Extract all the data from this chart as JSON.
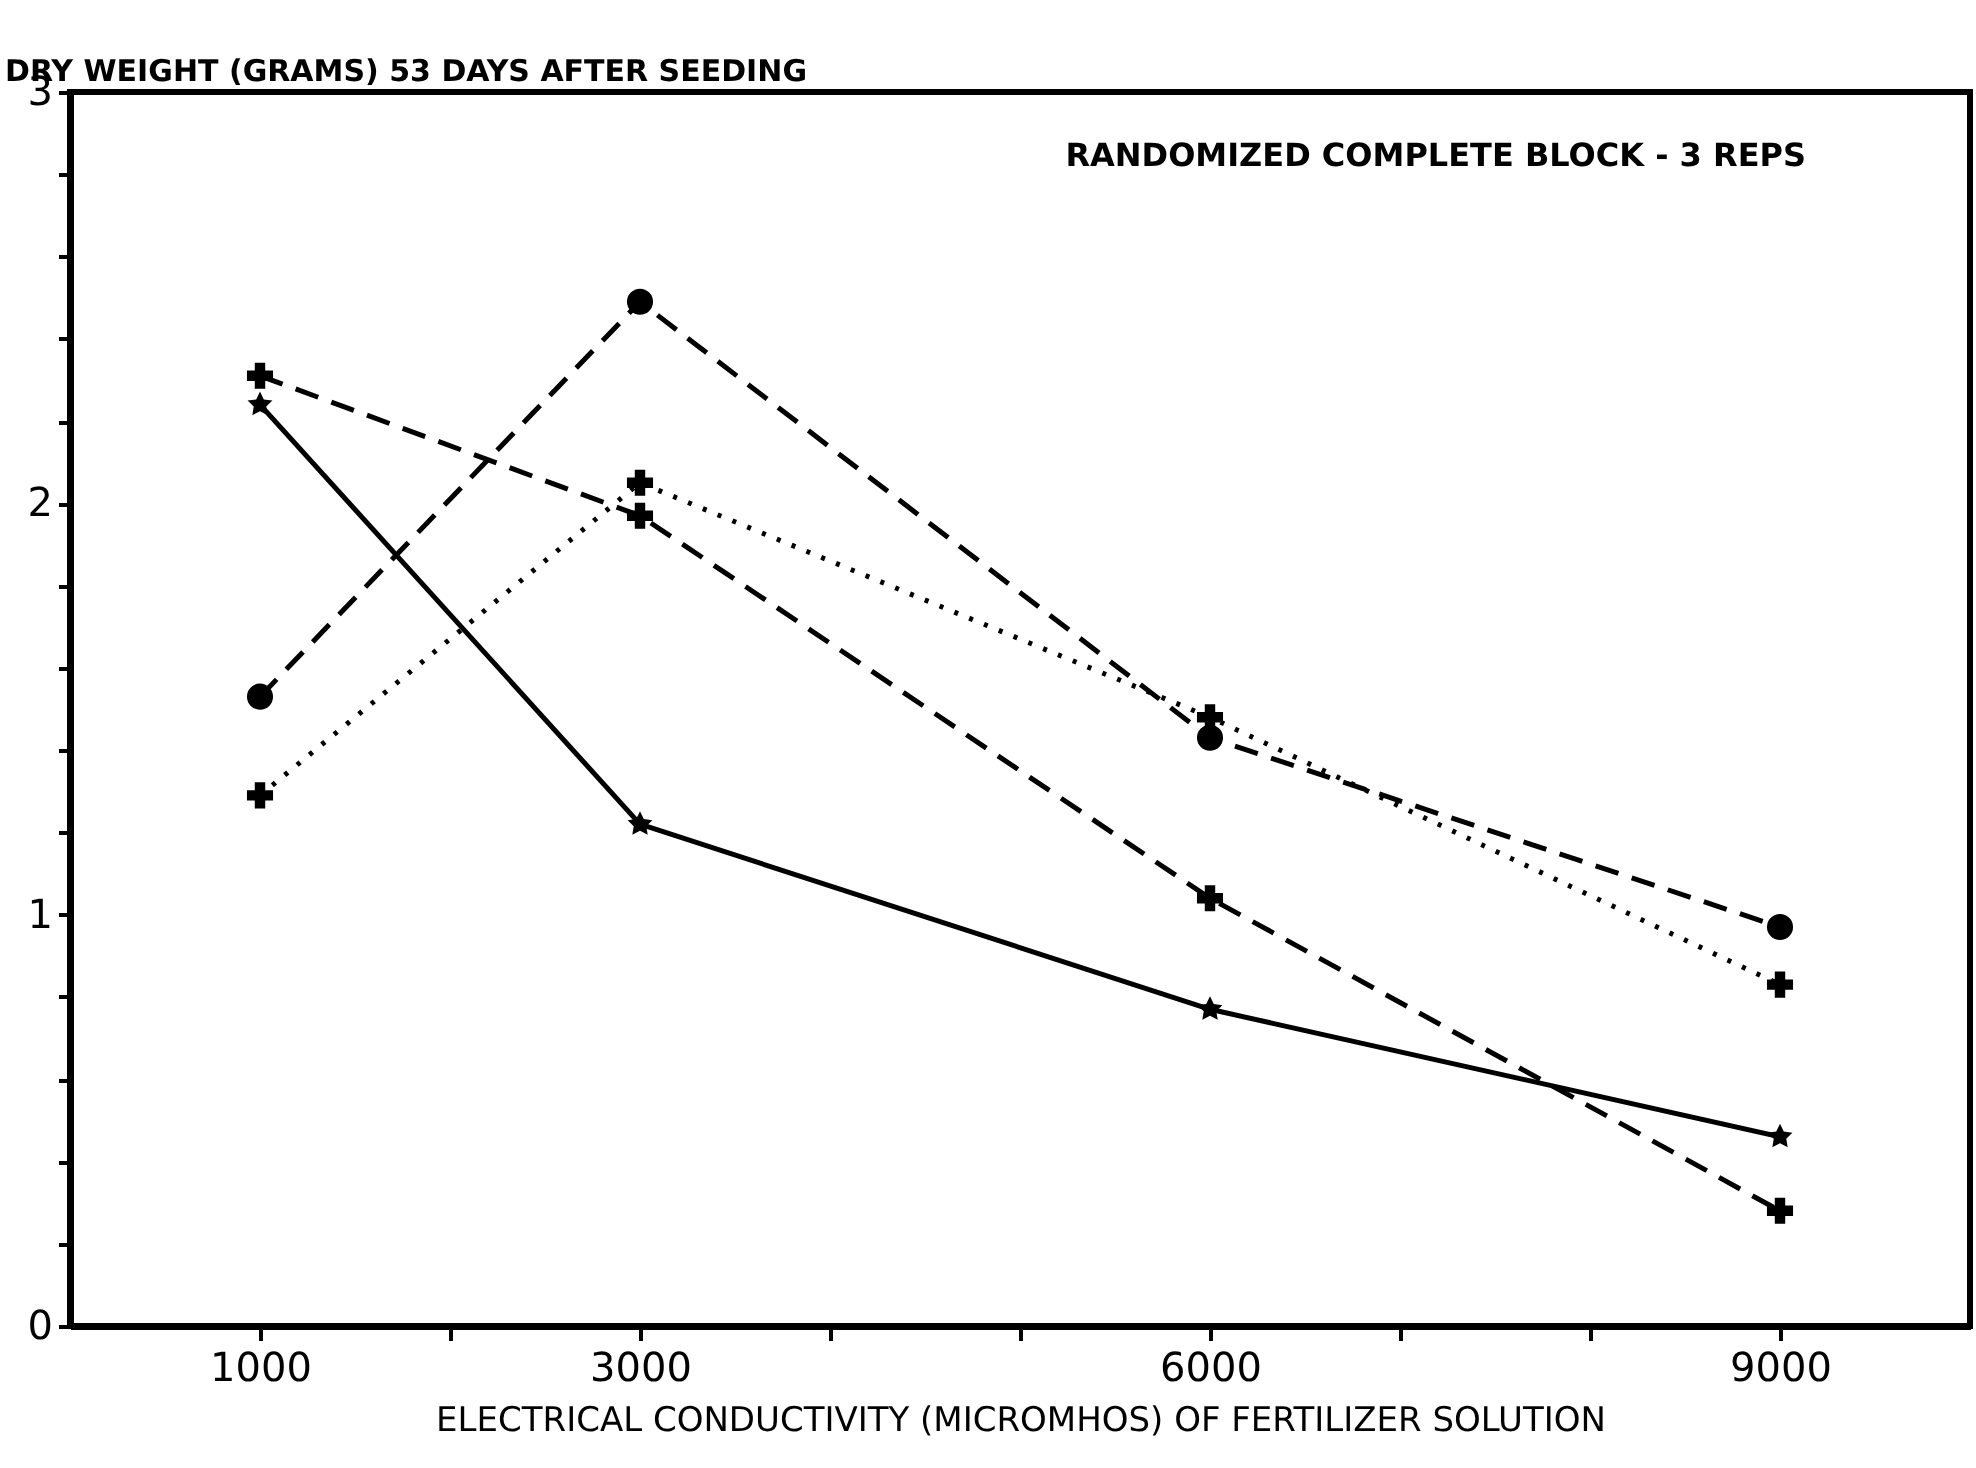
{
  "chart_data": {
    "type": "line",
    "ylabel": "DRY WEIGHT (GRAMS) 53 DAYS AFTER SEEDING",
    "xlabel": "ELECTRICAL CONDUCTIVITY (MICROMHOS) OF FERTILIZER SOLUTION",
    "annotations": [
      "RANDOMIZED COMPLETE BLOCK - 3 REPS"
    ],
    "x": [
      1000,
      3000,
      6000,
      9000
    ],
    "series": [
      {
        "color": "#000000",
        "marker": "star",
        "line_style": "solid",
        "values": [
          2.24,
          1.22,
          0.77,
          0.46
        ]
      },
      {
        "color": "#000000",
        "marker": "cross",
        "line_style": "dashed",
        "values": [
          2.31,
          1.97,
          1.04,
          0.28
        ]
      },
      {
        "color": "#000000",
        "marker": "circle",
        "line_style": "dashed",
        "values": [
          1.53,
          2.49,
          1.43,
          0.97
        ]
      },
      {
        "color": "#000000",
        "marker": "cross",
        "line_style": "dotted",
        "values": [
          1.29,
          2.05,
          1.48,
          0.83
        ]
      }
    ],
    "xlim": [
      0,
      10000
    ],
    "xticks": [
      1000,
      {
        "value": 2000,
        "label": null
      },
      3000,
      {
        "value": 4000,
        "label": null
      },
      {
        "value": 5000,
        "label": null
      },
      6000,
      {
        "value": 7000,
        "label": null
      },
      {
        "value": 8000,
        "label": null
      },
      9000
    ],
    "ylim": [
      0,
      3
    ],
    "yticks": [
      0,
      {
        "value": 0.2,
        "label": null
      },
      {
        "value": 0.4,
        "label": null
      },
      {
        "value": 0.6,
        "label": null
      },
      {
        "value": 0.8,
        "label": null
      },
      1,
      {
        "value": 1.2,
        "label": null
      },
      {
        "value": 1.4,
        "label": null
      },
      {
        "value": 1.6,
        "label": null
      },
      {
        "value": 1.8,
        "label": null
      },
      2,
      {
        "value": 2.2,
        "label": null
      },
      {
        "value": 2.4,
        "label": null
      },
      {
        "value": 2.6,
        "label": null
      },
      {
        "value": 2.8,
        "label": null
      },
      3
    ],
    "grid": false,
    "legend": false
  }
}
